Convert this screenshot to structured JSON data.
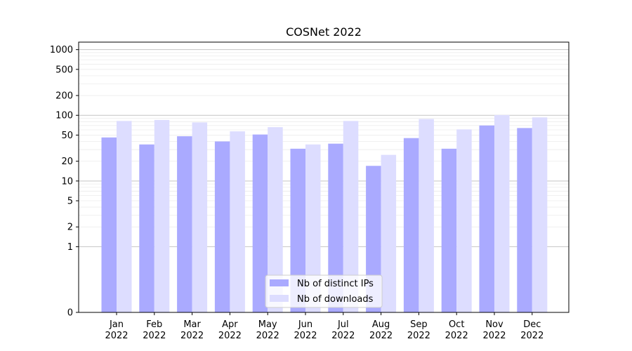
{
  "chart_data": {
    "type": "bar",
    "title": "COSNet 2022",
    "xlabel": "",
    "ylabel": "",
    "yscale": "symlog",
    "ylim": [
      0,
      1300
    ],
    "yticks": [
      0,
      1,
      2,
      5,
      10,
      20,
      50,
      100,
      200,
      500,
      1000
    ],
    "grid": "y-major-and-minor",
    "legend_position": "lower-center",
    "categories": [
      "Jan\n2022",
      "Feb\n2022",
      "Mar\n2022",
      "Apr\n2022",
      "May\n2022",
      "Jun\n2022",
      "Jul\n2022",
      "Aug\n2022",
      "Sep\n2022",
      "Oct\n2022",
      "Nov\n2022",
      "Dec\n2022"
    ],
    "series": [
      {
        "name": "Nb of distinct IPs",
        "color": "#aaaaff",
        "values": [
          46,
          36,
          48,
          40,
          51,
          31,
          37,
          17,
          45,
          31,
          70,
          64
        ]
      },
      {
        "name": "Nb of downloads",
        "color": "#ddddff",
        "values": [
          82,
          85,
          78,
          57,
          66,
          36,
          82,
          25,
          88,
          61,
          101,
          93
        ]
      }
    ]
  }
}
